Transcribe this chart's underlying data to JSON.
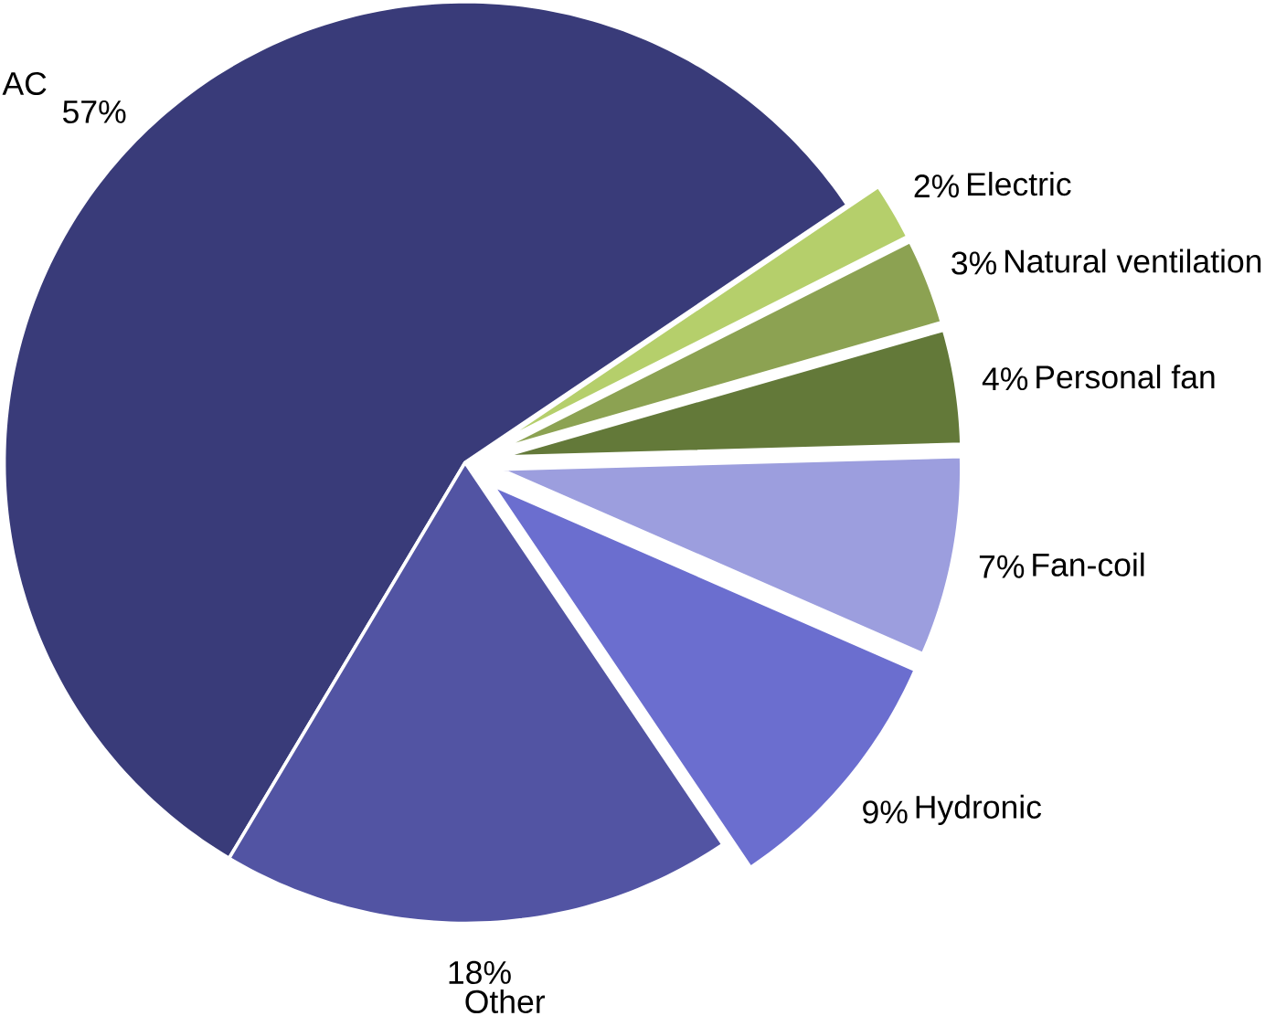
{
  "chart_data": {
    "type": "pie",
    "categories": [
      "AC",
      "Other",
      "Hydronic",
      "Fan-coil",
      "Personal fan",
      "Natural ventilation",
      "Electric"
    ],
    "values": [
      57,
      18,
      9,
      7,
      4,
      3,
      2
    ],
    "value_labels": [
      "57%",
      "18%",
      "9%",
      "7%",
      "4%",
      "3%",
      "2%"
    ],
    "colors": [
      "#393b79",
      "#5254a3",
      "#6b6ecf",
      "#9c9ede",
      "#637939",
      "#8ca252",
      "#b5cf6b"
    ]
  }
}
